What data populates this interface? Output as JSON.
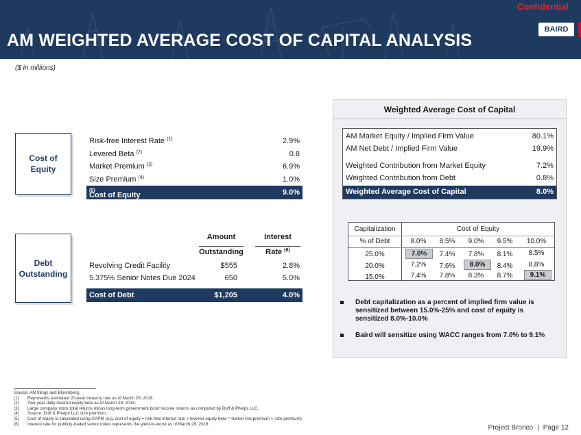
{
  "header": {
    "confidential": "Confidential",
    "title": "AM WEIGHTED AVERAGE COST OF CAPITAL ANALYSIS",
    "logo": "BAIRD"
  },
  "units": "($ in millions)",
  "cost_of_equity": {
    "label": "Cost of Equity",
    "rows": [
      {
        "label": "Risk-free Interest Rate",
        "note": "(1)",
        "value": "2.9%"
      },
      {
        "label": "Levered Beta",
        "note": "(2)",
        "value": "0.8"
      },
      {
        "label": "Market Premium",
        "note": "(3)",
        "value": "6.9%"
      },
      {
        "label": "Size Premium",
        "note": "(4)",
        "value": "1.0%"
      }
    ],
    "total": {
      "label": "Cost of Equity",
      "note": "(5)",
      "value": "9.0%"
    }
  },
  "debt": {
    "label": "Debt Outstanding",
    "col1_line1": "Amount",
    "col1_line2": "Outstanding",
    "col2_line1": "Interest",
    "col2_line2": "Rate",
    "col2_note": "(6)",
    "rows": [
      {
        "label": "Revolving Credit Facility",
        "amount": "$555",
        "rate": "2.8%"
      },
      {
        "label": "5.375% Senior Notes Due 2024",
        "amount": "650",
        "rate": "5.0%"
      }
    ],
    "total": {
      "label": "Cost of Debt",
      "amount": "$1,205",
      "rate": "4.0%"
    }
  },
  "wacc": {
    "heading": "Weighted Average Cost of Capital",
    "rows": [
      {
        "label": "AM Market Equity / Implied Firm Value",
        "value": "80.1%"
      },
      {
        "label": "AM Net Debt / Implied Firm Value",
        "value": "19.9%"
      },
      {
        "label": "Weighted Contribution from Market Equity",
        "value": "7.2%"
      },
      {
        "label": "Weighted Contribution from Debt",
        "value": "0.8%"
      }
    ],
    "total": {
      "label": "Weighted Average Cost of Capital",
      "value": "8.0%"
    }
  },
  "sensitivity": {
    "row_header_1": "Capitalization",
    "row_header_2": "% of Debt",
    "col_header": "Cost of Equity",
    "columns": [
      "8.0%",
      "8.5%",
      "9.0%",
      "9.5%",
      "10.0%"
    ],
    "rows": [
      {
        "label": "25.0%",
        "values": [
          "7.0%",
          "7.4%",
          "7.8%",
          "8.1%",
          "8.5%"
        ]
      },
      {
        "label": "20.0%",
        "values": [
          "7.2%",
          "7.6%",
          "8.0%",
          "8.4%",
          "8.8%"
        ]
      },
      {
        "label": "15.0%",
        "values": [
          "7.4%",
          "7.8%",
          "8.3%",
          "8.7%",
          "9.1%"
        ]
      }
    ]
  },
  "bullets": [
    "Debt capitalization as a percent of implied firm value is sensitized between 15.0%-25% and cost of equity is sensitized 8.0%-10.0%",
    "Baird will sensitize using WACC ranges from 7.0% to 9.1%"
  ],
  "footnotes": {
    "source": "Source: AM filings and Bloomberg.",
    "notes": [
      {
        "n": "(1)",
        "text": "Represents estimated 20-year treasury rate as of March 29, 2018."
      },
      {
        "n": "(2)",
        "text": "Two-year daily levered equity beta as of March 29, 2018."
      },
      {
        "n": "(3)",
        "text": "Large company stock total returns minus long-term government bond income returns as computed by Duff & Phelps LLC."
      },
      {
        "n": "(4)",
        "text": "Source: Duff & Phelps LLC size premium."
      },
      {
        "n": "(5)",
        "text": "Cost of equity is calculated using CAPM (e.g. cost of equity = risk-free interest rate + levered equity beta * market risk premium + size premium)."
      },
      {
        "n": "(6)",
        "text": "Interest rate for publicly-traded senior notes represents the yield-to-worst as of March 29, 2018."
      }
    ]
  },
  "footer": {
    "project": "Project Bronco",
    "sep": "|",
    "page": "Page 12"
  }
}
